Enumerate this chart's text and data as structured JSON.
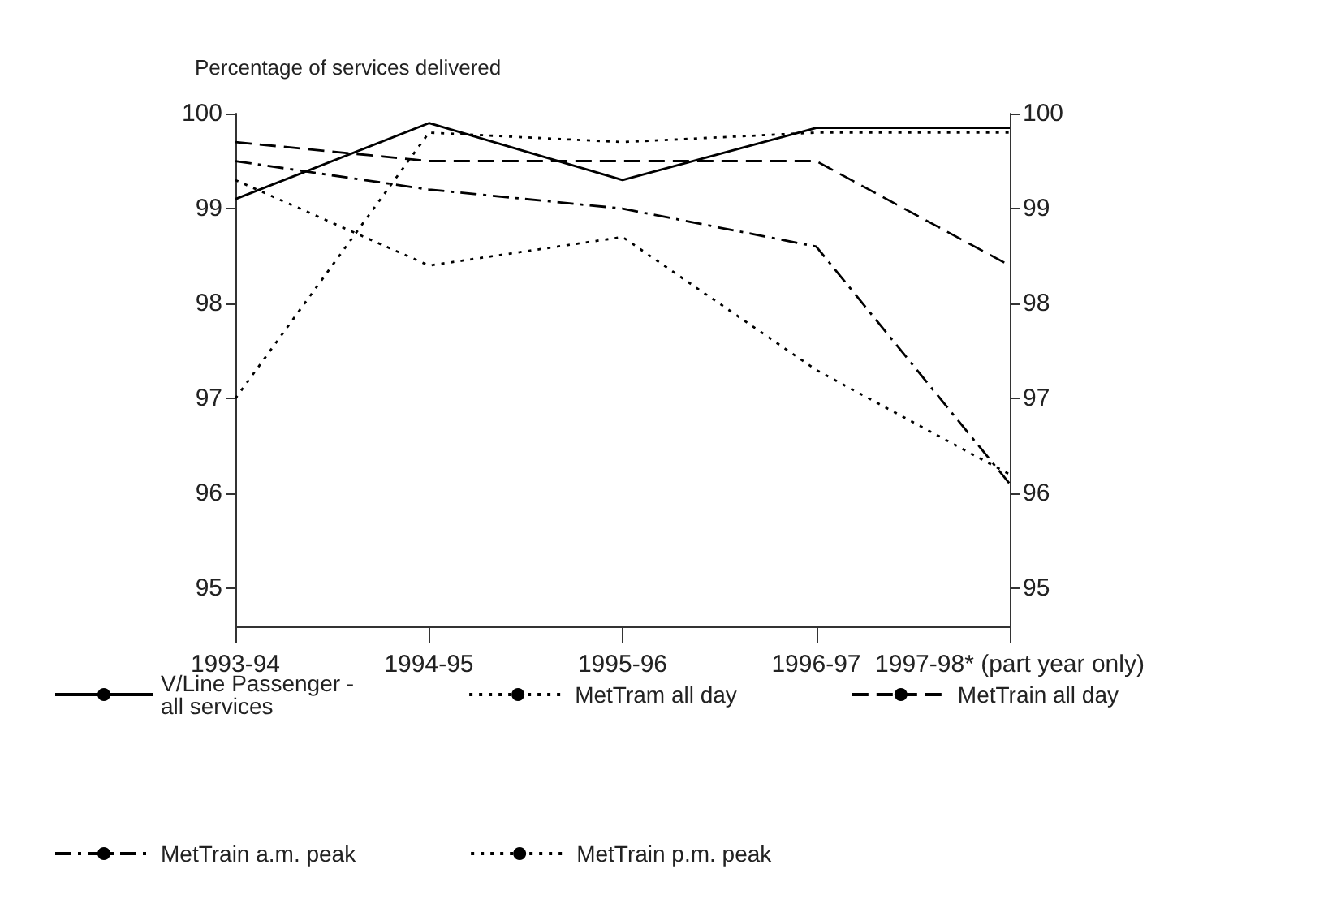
{
  "chart_data": {
    "type": "line",
    "ylabel": "Percentage of services delivered",
    "categories": [
      "1993-94",
      "1994-95",
      "1995-96",
      "1996-97",
      "1997-98* (part year only)"
    ],
    "series": [
      {
        "name": "V/Line Passenger -\nall services",
        "color": "#000000",
        "line_style": "solid",
        "values": [
          99.1,
          99.9,
          99.3,
          99.85,
          99.85
        ]
      },
      {
        "name": "MetTram all day",
        "color": "#000000",
        "line_style": "dotted",
        "values": [
          97.0,
          99.8,
          99.7,
          99.8,
          99.8
        ]
      },
      {
        "name": "MetTrain all day",
        "color": "#000000",
        "line_style": "dashed",
        "values": [
          99.7,
          99.5,
          99.5,
          99.5,
          98.4
        ]
      },
      {
        "name": "MetTrain a.m. peak",
        "color": "#000000",
        "line_style": "dashdot",
        "values": [
          99.5,
          99.2,
          99.0,
          98.6,
          96.1
        ]
      },
      {
        "name": "MetTrain p.m. peak",
        "color": "#000000",
        "line_style": "dotted",
        "values": [
          99.3,
          98.4,
          98.7,
          97.3,
          96.2
        ]
      }
    ],
    "ylim": [
      94.6,
      100
    ],
    "yticks": [
      95,
      96,
      97,
      98,
      99,
      100
    ],
    "y2lim": [
      94.6,
      100
    ],
    "y2ticks": [
      95,
      96,
      97,
      98,
      99,
      100
    ],
    "grid": false,
    "legend": "bottom",
    "marker": "none"
  }
}
